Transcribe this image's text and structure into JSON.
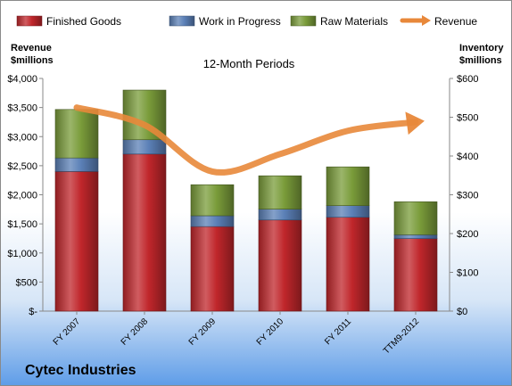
{
  "company": "Cytec Industries",
  "chart_data": {
    "type": "bar",
    "title": "12-Month Periods",
    "categories": [
      "FY 2007",
      "FY 2008",
      "FY 2009",
      "FY 2010",
      "FY 2011",
      "TTM9-2012"
    ],
    "stacked": true,
    "series": [
      {
        "name": "Finished Goods",
        "axis": "right",
        "color": "#c0262b",
        "values": [
          360,
          405,
          218,
          235,
          242,
          187
        ]
      },
      {
        "name": "Work in Progress",
        "axis": "right",
        "color": "#5b80b7",
        "values": [
          35,
          37,
          28,
          28,
          30,
          10
        ]
      },
      {
        "name": "Raw Materials",
        "axis": "right",
        "color": "#7a9c3a",
        "values": [
          125,
          128,
          80,
          86,
          100,
          85
        ]
      },
      {
        "name": "Revenue",
        "type": "line",
        "axis": "left",
        "color": "#e8883a",
        "values": [
          3500,
          3200,
          2400,
          2700,
          3100,
          3250
        ]
      }
    ],
    "y_left": {
      "label_line1": "Revenue",
      "label_line2": "$millions",
      "range": [
        0,
        4000
      ],
      "ticks": [
        0,
        500,
        1000,
        1500,
        2000,
        2500,
        3000,
        3500,
        4000
      ],
      "tick_labels": [
        "$-",
        "$500",
        "$1,000",
        "$1,500",
        "$2,000",
        "$2,500",
        "$3,000",
        "$3,500",
        "$4,000"
      ]
    },
    "y_right": {
      "label_line1": "Inventory",
      "label_line2": "$millions",
      "range": [
        0,
        600
      ],
      "ticks": [
        0,
        100,
        200,
        300,
        400,
        500,
        600
      ],
      "tick_labels": [
        "$0",
        "$100",
        "$200",
        "$300",
        "$400",
        "$500",
        "$600"
      ]
    },
    "legend": "top",
    "grid": false
  }
}
